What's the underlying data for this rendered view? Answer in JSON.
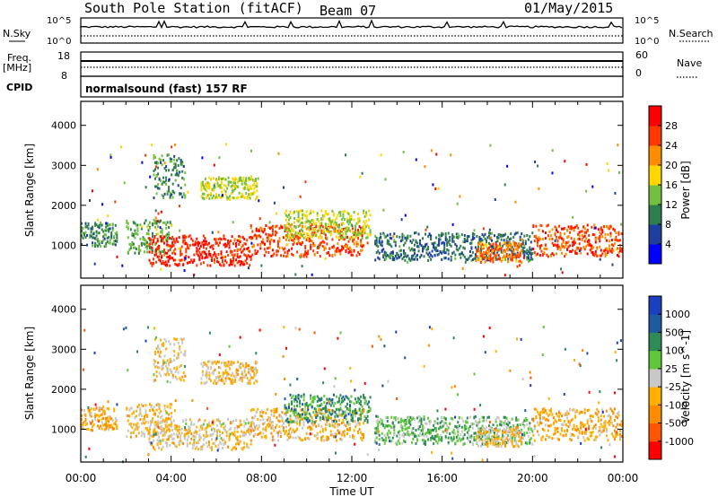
{
  "header": {
    "station": "South Pole Station (fitACF)",
    "beam": "Beam 07",
    "date": "01/May/2015"
  },
  "panels": {
    "nsky_label": "N.Sky",
    "nsky_ticks": [
      "10^5",
      "10^0"
    ],
    "nsearch_label": "N.Search",
    "nsearch_ticks": [
      "10^5",
      "10^0"
    ],
    "freq_label_1": "Freq.",
    "freq_label_2": "[MHz]",
    "freq_ticks": [
      "18",
      "8"
    ],
    "nave_label": "Nave",
    "nave_ticks": [
      "60",
      "0"
    ],
    "cpid_label": "CPID",
    "cpid_value": "normalsound (fast) 157 RF"
  },
  "colors": {
    "power_scale": [
      "#0000ff",
      "#1e3fa0",
      "#2e7d4f",
      "#73c040",
      "#ffd700",
      "#ff8c00",
      "#ff3800",
      "#ff0000"
    ],
    "velocity_scale": [
      "#ff0000",
      "#ff5500",
      "#ff8c00",
      "#ffb000",
      "#c8c8c8",
      "#5ec83a",
      "#2e8b57",
      "#1e5aa0",
      "#1a3fc0"
    ]
  },
  "chart_data": [
    {
      "type": "heatmap",
      "title": "",
      "xlabel": "Time UT",
      "ylabel": "Slant Range [km]",
      "x_ticks": [
        "00:00",
        "04:00",
        "08:00",
        "12:00",
        "16:00",
        "20:00",
        "00:00"
      ],
      "y_ticks": [
        "1000",
        "2000",
        "3000",
        "4000"
      ],
      "xlim": [
        0,
        24
      ],
      "ylim": [
        180,
        4600
      ],
      "colorbar_label": "Power [dB]",
      "colorbar_ticks": [
        "28",
        "24",
        "20",
        "16",
        "12",
        "8",
        "4"
      ],
      "color_range": [
        0,
        30
      ],
      "scatter_bands": [
        {
          "start": 0.0,
          "end": 1.6,
          "center": 1300,
          "width": 300,
          "value": 10
        },
        {
          "start": 2.0,
          "end": 4.0,
          "center": 1250,
          "width": 420,
          "value": 12
        },
        {
          "start": 3.0,
          "end": 7.5,
          "center": 900,
          "width": 380,
          "value": 26
        },
        {
          "start": 3.2,
          "end": 4.6,
          "center": 2750,
          "width": 550,
          "value": 10
        },
        {
          "start": 5.3,
          "end": 7.8,
          "center": 2450,
          "width": 280,
          "value": 15
        },
        {
          "start": 7.5,
          "end": 12.5,
          "center": 1150,
          "width": 400,
          "value": 24
        },
        {
          "start": 9.0,
          "end": 12.8,
          "center": 1550,
          "width": 350,
          "value": 15
        },
        {
          "start": 13.0,
          "end": 20.0,
          "center": 1000,
          "width": 350,
          "value": 8
        },
        {
          "start": 17.5,
          "end": 19.5,
          "center": 850,
          "width": 250,
          "value": 22
        },
        {
          "start": 20.0,
          "end": 23.9,
          "center": 1150,
          "width": 400,
          "value": 24
        }
      ]
    },
    {
      "type": "heatmap",
      "title": "",
      "xlabel": "Time UT",
      "ylabel": "Slant Range [km]",
      "x_ticks": [
        "00:00",
        "04:00",
        "08:00",
        "12:00",
        "16:00",
        "20:00",
        "00:00"
      ],
      "y_ticks": [
        "1000",
        "2000",
        "3000",
        "4000"
      ],
      "xlim": [
        0,
        24
      ],
      "ylim": [
        180,
        4600
      ],
      "colorbar_label": "Velocity [m s^-1]",
      "colorbar_ticks": [
        "1000",
        "500",
        "100",
        "25",
        "-25",
        "-100",
        "-500",
        "-1000"
      ],
      "color_range": [
        -1200,
        1200
      ],
      "scatter_bands": [
        {
          "start": 0.0,
          "end": 1.6,
          "center": 1300,
          "width": 300,
          "value": -300
        },
        {
          "start": 2.0,
          "end": 4.0,
          "center": 1250,
          "width": 420,
          "value": -200
        },
        {
          "start": 3.0,
          "end": 7.5,
          "center": 900,
          "width": 380,
          "value": -150
        },
        {
          "start": 3.2,
          "end": 4.6,
          "center": 2750,
          "width": 550,
          "value": -150
        },
        {
          "start": 5.3,
          "end": 7.8,
          "center": 2450,
          "width": 280,
          "value": -200
        },
        {
          "start": 7.5,
          "end": 12.5,
          "center": 1150,
          "width": 400,
          "value": -250
        },
        {
          "start": 9.0,
          "end": 12.8,
          "center": 1550,
          "width": 350,
          "value": 500
        },
        {
          "start": 13.0,
          "end": 20.0,
          "center": 1000,
          "width": 350,
          "value": 300
        },
        {
          "start": 17.5,
          "end": 19.5,
          "center": 850,
          "width": 250,
          "value": -200
        },
        {
          "start": 20.0,
          "end": 23.9,
          "center": 1150,
          "width": 400,
          "value": -300
        }
      ]
    }
  ]
}
